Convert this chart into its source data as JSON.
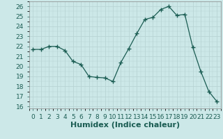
{
  "x": [
    0,
    1,
    2,
    3,
    4,
    5,
    6,
    7,
    8,
    9,
    10,
    11,
    12,
    13,
    14,
    15,
    16,
    17,
    18,
    19,
    20,
    21,
    22,
    23
  ],
  "y": [
    21.7,
    21.7,
    22.0,
    22.0,
    21.6,
    20.5,
    20.2,
    19.0,
    18.9,
    18.85,
    18.5,
    20.4,
    21.8,
    23.3,
    24.7,
    24.9,
    25.7,
    26.0,
    25.1,
    25.2,
    21.9,
    19.5,
    17.5,
    16.5
  ],
  "line_color": "#1a5c52",
  "marker": "D",
  "marker_size": 2.5,
  "bg_color": "#cce8e8",
  "grid_color": "#b8d4d4",
  "xlabel": "Humidex (Indice chaleur)",
  "xlim": [
    -0.5,
    23.5
  ],
  "ylim": [
    15.8,
    26.5
  ],
  "yticks": [
    16,
    17,
    18,
    19,
    20,
    21,
    22,
    23,
    24,
    25,
    26
  ],
  "xtick_labels": [
    "0",
    "1",
    "2",
    "3",
    "4",
    "5",
    "6",
    "7",
    "8",
    "9",
    "10",
    "11",
    "12",
    "13",
    "14",
    "15",
    "16",
    "17",
    "18",
    "19",
    "20",
    "21",
    "22",
    "23"
  ],
  "font_color": "#1a5c52",
  "fontsize_label": 8,
  "fontsize_tick": 6.5,
  "grid_minor_color": "#c8dcdc",
  "spine_color": "#888888"
}
